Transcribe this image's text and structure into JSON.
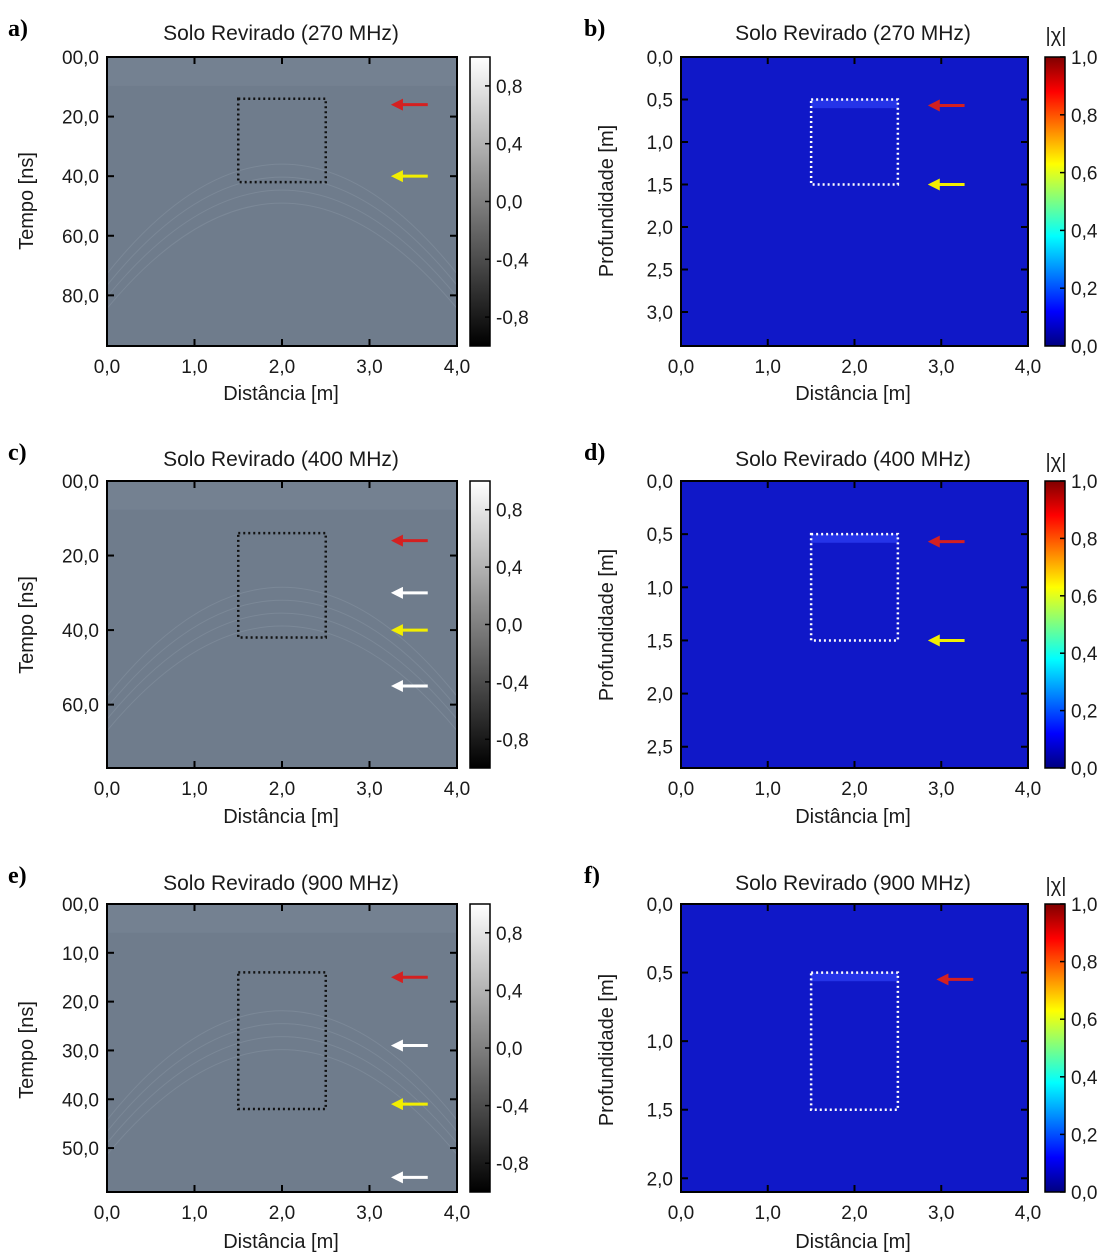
{
  "figure": {
    "colors": {
      "radargram_background": "#6f7c8c",
      "chi_background": "#1018c8",
      "box_black": "#111111",
      "box_white": "#ffffff",
      "arrow_red": "#d42020",
      "arrow_yellow": "#f2ee00",
      "arrow_white": "#ffffff"
    }
  },
  "chart_data": [
    {
      "panel": "a)",
      "type": "heatmap",
      "title": "Solo Revirado (270 MHz)",
      "xlabel": "Distância [m]",
      "ylabel": "Tempo [ns]",
      "xlim": [
        0,
        4
      ],
      "ylim": [
        0,
        97
      ],
      "x_ticks": [
        0,
        1,
        2,
        3,
        4
      ],
      "x_tick_labels": [
        "0,0",
        "1,0",
        "2,0",
        "3,0",
        "4,0"
      ],
      "y_ticks": [
        0,
        20,
        40,
        60,
        80
      ],
      "y_tick_labels": [
        "00,0",
        "20,0",
        "40,0",
        "60,0",
        "80,0"
      ],
      "colorbar": {
        "colormap": "gray",
        "range": [
          -1,
          1
        ],
        "ticks": [
          0.8,
          0.4,
          0.0,
          -0.4,
          -0.8
        ],
        "tick_labels": [
          "0,8",
          "0,4",
          "0,0",
          "-0,4",
          "-0,8"
        ]
      },
      "box": {
        "x": [
          1.5,
          2.5
        ],
        "y": [
          14,
          42
        ],
        "style": "dotted",
        "color": "black"
      },
      "arrows": [
        {
          "color": "red",
          "x": 3.3,
          "y": 16
        },
        {
          "color": "yellow",
          "x": 3.3,
          "y": 40
        }
      ]
    },
    {
      "panel": "b)",
      "type": "heatmap",
      "title": "Solo Revirado (270 MHz)",
      "xlabel": "Distância [m]",
      "ylabel": "Profundidade [m]",
      "xlim": [
        0,
        4
      ],
      "ylim": [
        0,
        3.4
      ],
      "x_ticks": [
        0,
        1,
        2,
        3,
        4
      ],
      "x_tick_labels": [
        "0,0",
        "1,0",
        "2,0",
        "3,0",
        "4,0"
      ],
      "y_ticks": [
        0,
        0.5,
        1,
        1.5,
        2,
        2.5,
        3
      ],
      "y_tick_labels": [
        "0,0",
        "0,5",
        "1,0",
        "1,5",
        "2,0",
        "2,5",
        "3,0"
      ],
      "colorbar": {
        "colormap": "jet",
        "label": "|χ|",
        "range": [
          0,
          1
        ],
        "ticks": [
          1.0,
          0.8,
          0.6,
          0.4,
          0.2,
          0.0
        ],
        "tick_labels": [
          "1,0",
          "0,8",
          "0,6",
          "0,4",
          "0,2",
          "0,0"
        ]
      },
      "box": {
        "x": [
          1.5,
          2.5
        ],
        "y": [
          0.5,
          1.5
        ],
        "style": "dotted",
        "color": "white"
      },
      "arrows": [
        {
          "color": "red",
          "x": 2.9,
          "y": 0.57
        },
        {
          "color": "yellow",
          "x": 2.9,
          "y": 1.5
        }
      ]
    },
    {
      "panel": "c)",
      "type": "heatmap",
      "title": "Solo Revirado (400 MHz)",
      "xlabel": "Distância [m]",
      "ylabel": "Tempo [ns]",
      "xlim": [
        0,
        4
      ],
      "ylim": [
        0,
        77
      ],
      "x_ticks": [
        0,
        1,
        2,
        3,
        4
      ],
      "x_tick_labels": [
        "0,0",
        "1,0",
        "2,0",
        "3,0",
        "4,0"
      ],
      "y_ticks": [
        0,
        20,
        40,
        60
      ],
      "y_tick_labels": [
        "00,0",
        "20,0",
        "40,0",
        "60,0"
      ],
      "colorbar": {
        "colormap": "gray",
        "range": [
          -1,
          1
        ],
        "ticks": [
          0.8,
          0.4,
          0.0,
          -0.4,
          -0.8
        ],
        "tick_labels": [
          "0,8",
          "0,4",
          "0,0",
          "-0,4",
          "-0,8"
        ]
      },
      "box": {
        "x": [
          1.5,
          2.5
        ],
        "y": [
          14,
          42
        ],
        "style": "dotted",
        "color": "black"
      },
      "arrows": [
        {
          "color": "red",
          "x": 3.3,
          "y": 16
        },
        {
          "color": "white",
          "x": 3.3,
          "y": 30
        },
        {
          "color": "yellow",
          "x": 3.3,
          "y": 40
        },
        {
          "color": "white",
          "x": 3.3,
          "y": 55
        }
      ]
    },
    {
      "panel": "d)",
      "type": "heatmap",
      "title": "Solo Revirado (400 MHz)",
      "xlabel": "Distância [m]",
      "ylabel": "Profundidade [m]",
      "xlim": [
        0,
        4
      ],
      "ylim": [
        0,
        2.7
      ],
      "x_ticks": [
        0,
        1,
        2,
        3,
        4
      ],
      "x_tick_labels": [
        "0,0",
        "1,0",
        "2,0",
        "3,0",
        "4,0"
      ],
      "y_ticks": [
        0,
        0.5,
        1,
        1.5,
        2,
        2.5
      ],
      "y_tick_labels": [
        "0,0",
        "0,5",
        "1,0",
        "1,5",
        "2,0",
        "2,5"
      ],
      "colorbar": {
        "colormap": "jet",
        "label": "|χ|",
        "range": [
          0,
          1
        ],
        "ticks": [
          1.0,
          0.8,
          0.6,
          0.4,
          0.2,
          0.0
        ],
        "tick_labels": [
          "1,0",
          "0,8",
          "0,6",
          "0,4",
          "0,2",
          "0,0"
        ]
      },
      "box": {
        "x": [
          1.5,
          2.5
        ],
        "y": [
          0.5,
          1.5
        ],
        "style": "dotted",
        "color": "white"
      },
      "arrows": [
        {
          "color": "red",
          "x": 2.9,
          "y": 0.57
        },
        {
          "color": "yellow",
          "x": 2.9,
          "y": 1.5
        }
      ]
    },
    {
      "panel": "e)",
      "type": "heatmap",
      "title": "Solo Revirado (900 MHz)",
      "xlabel": "Distância [m]",
      "ylabel": "Tempo [ns]",
      "xlim": [
        0,
        4
      ],
      "ylim": [
        0,
        59
      ],
      "x_ticks": [
        0,
        1,
        2,
        3,
        4
      ],
      "x_tick_labels": [
        "0,0",
        "1,0",
        "2,0",
        "3,0",
        "4,0"
      ],
      "y_ticks": [
        0,
        10,
        20,
        30,
        40,
        50
      ],
      "y_tick_labels": [
        "00,0",
        "10,0",
        "20,0",
        "30,0",
        "40,0",
        "50,0"
      ],
      "colorbar": {
        "colormap": "gray",
        "range": [
          -1,
          1
        ],
        "ticks": [
          0.8,
          0.4,
          0.0,
          -0.4,
          -0.8
        ],
        "tick_labels": [
          "0,8",
          "0,4",
          "0,0",
          "-0,4",
          "-0,8"
        ]
      },
      "box": {
        "x": [
          1.5,
          2.5
        ],
        "y": [
          14,
          42
        ],
        "style": "dotted",
        "color": "black"
      },
      "arrows": [
        {
          "color": "red",
          "x": 3.3,
          "y": 15
        },
        {
          "color": "white",
          "x": 3.3,
          "y": 29
        },
        {
          "color": "yellow",
          "x": 3.3,
          "y": 41
        },
        {
          "color": "white",
          "x": 3.3,
          "y": 56
        }
      ]
    },
    {
      "panel": "f)",
      "type": "heatmap",
      "title": "Solo Revirado (900 MHz)",
      "xlabel": "Distância [m]",
      "ylabel": "Profundidade [m]",
      "xlim": [
        0,
        4
      ],
      "ylim": [
        0,
        2.1
      ],
      "x_ticks": [
        0,
        1,
        2,
        3,
        4
      ],
      "x_tick_labels": [
        "0,0",
        "1,0",
        "2,0",
        "3,0",
        "4,0"
      ],
      "y_ticks": [
        0,
        0.5,
        1,
        1.5,
        2
      ],
      "y_tick_labels": [
        "0,0",
        "0,5",
        "1,0",
        "1,5",
        "2,0"
      ],
      "colorbar": {
        "colormap": "jet",
        "label": "|χ|",
        "range": [
          0,
          1
        ],
        "ticks": [
          1.0,
          0.8,
          0.6,
          0.4,
          0.2,
          0.0
        ],
        "tick_labels": [
          "1,0",
          "0,8",
          "0,6",
          "0,4",
          "0,2",
          "0,0"
        ]
      },
      "box": {
        "x": [
          1.5,
          2.5
        ],
        "y": [
          0.5,
          1.5
        ],
        "style": "dotted",
        "color": "white"
      },
      "arrows": [
        {
          "color": "red",
          "x": 3.0,
          "y": 0.55
        }
      ]
    }
  ]
}
